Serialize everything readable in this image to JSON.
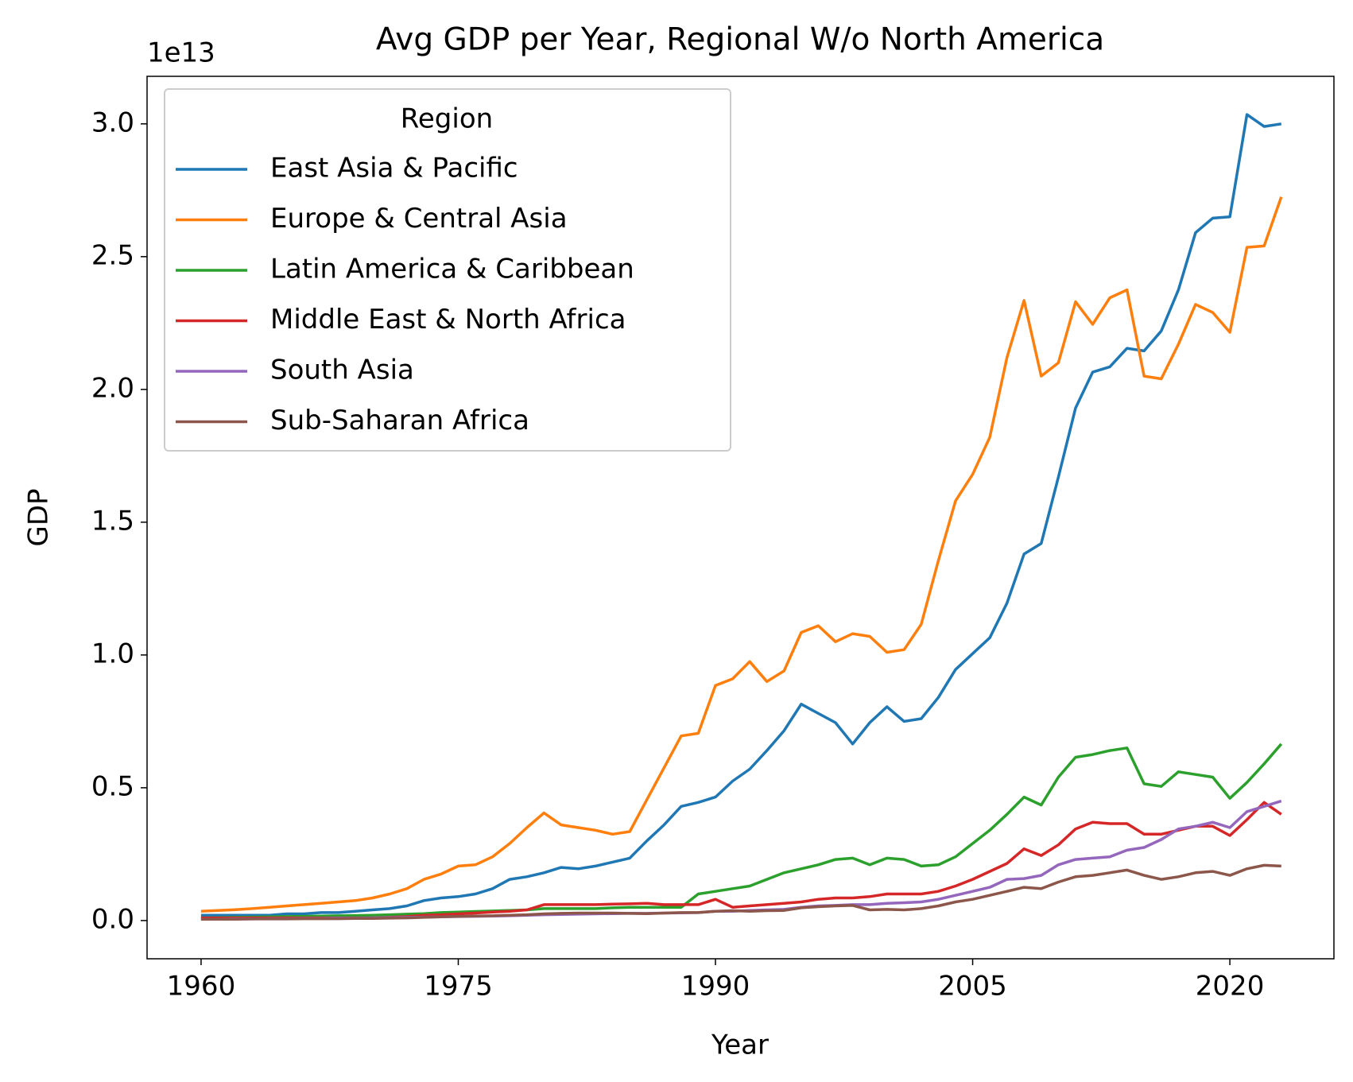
{
  "chart_data": {
    "type": "line",
    "title": "Avg GDP per Year, Regional W/o North America",
    "x_label": "Year",
    "y_label": "GDP",
    "y_offset_label": "1e13",
    "legend_title": "Region",
    "legend_position": "upper left",
    "x": [
      1960,
      1961,
      1962,
      1963,
      1964,
      1965,
      1966,
      1967,
      1968,
      1969,
      1970,
      1971,
      1972,
      1973,
      1974,
      1975,
      1976,
      1977,
      1978,
      1979,
      1980,
      1981,
      1982,
      1983,
      1984,
      1985,
      1986,
      1987,
      1988,
      1989,
      1990,
      1991,
      1992,
      1993,
      1994,
      1995,
      1996,
      1997,
      1998,
      1999,
      2000,
      2001,
      2002,
      2003,
      2004,
      2005,
      2006,
      2007,
      2008,
      2009,
      2010,
      2011,
      2012,
      2013,
      2014,
      2015,
      2016,
      2017,
      2018,
      2019,
      2020,
      2021,
      2022,
      2023
    ],
    "xlim": [
      1956.85,
      2026.07
    ],
    "xticks": [
      1960,
      1975,
      1990,
      2005,
      2020
    ],
    "ylim": [
      -0.144,
      3.179
    ],
    "yticks": [
      {
        "value": 0,
        "label": "0.0"
      },
      0.5,
      {
        "value": 1,
        "label": "1.0"
      },
      1.5,
      {
        "value": 2,
        "label": "2.0"
      },
      2.5,
      {
        "value": 3,
        "label": "3.0"
      }
    ],
    "series": [
      {
        "name": "East Asia & Pacific",
        "color": "#1f77b4",
        "values": [
          0.02,
          0.02,
          0.02,
          0.02,
          0.02,
          0.025,
          0.025,
          0.03,
          0.03,
          0.035,
          0.04,
          0.045,
          0.055,
          0.075,
          0.085,
          0.09,
          0.1,
          0.12,
          0.155,
          0.165,
          0.18,
          0.2,
          0.195,
          0.205,
          0.22,
          0.235,
          0.3,
          0.36,
          0.43,
          0.445,
          0.465,
          0.525,
          0.57,
          0.64,
          0.715,
          0.815,
          0.78,
          0.745,
          0.665,
          0.745,
          0.805,
          0.75,
          0.76,
          0.84,
          0.945,
          1.005,
          1.065,
          1.195,
          1.38,
          1.42,
          1.67,
          1.93,
          2.065,
          2.085,
          2.155,
          2.145,
          2.22,
          2.375,
          2.59,
          2.645,
          2.65,
          3.035,
          2.99,
          3.0
        ]
      },
      {
        "name": "Europe & Central Asia",
        "color": "#ff7f0e",
        "values": [
          0.035,
          0.038,
          0.041,
          0.045,
          0.05,
          0.055,
          0.06,
          0.065,
          0.07,
          0.075,
          0.085,
          0.1,
          0.12,
          0.155,
          0.175,
          0.205,
          0.21,
          0.24,
          0.29,
          0.35,
          0.405,
          0.36,
          0.35,
          0.34,
          0.325,
          0.335,
          0.455,
          0.575,
          0.695,
          0.705,
          0.885,
          0.91,
          0.975,
          0.9,
          0.94,
          1.085,
          1.11,
          1.05,
          1.08,
          1.07,
          1.01,
          1.02,
          1.115,
          1.355,
          1.58,
          1.68,
          1.82,
          2.12,
          2.335,
          2.05,
          2.1,
          2.33,
          2.245,
          2.345,
          2.375,
          2.05,
          2.04,
          2.17,
          2.32,
          2.29,
          2.215,
          2.535,
          2.54,
          2.725
        ]
      },
      {
        "name": "Latin America & Caribbean",
        "color": "#2ca02c",
        "values": [
          0.01,
          0.011,
          0.012,
          0.013,
          0.014,
          0.015,
          0.016,
          0.017,
          0.018,
          0.019,
          0.02,
          0.022,
          0.024,
          0.026,
          0.03,
          0.032,
          0.034,
          0.036,
          0.038,
          0.04,
          0.045,
          0.045,
          0.045,
          0.045,
          0.048,
          0.05,
          0.05,
          0.05,
          0.05,
          0.1,
          0.11,
          0.12,
          0.13,
          0.155,
          0.18,
          0.195,
          0.21,
          0.23,
          0.235,
          0.21,
          0.235,
          0.23,
          0.205,
          0.21,
          0.24,
          0.29,
          0.34,
          0.4,
          0.465,
          0.435,
          0.54,
          0.615,
          0.625,
          0.64,
          0.65,
          0.515,
          0.505,
          0.56,
          0.55,
          0.54,
          0.46,
          0.52,
          0.59,
          0.665
        ]
      },
      {
        "name": "Middle East & North Africa",
        "color": "#d62728",
        "values": [
          0.01,
          0.01,
          0.01,
          0.01,
          0.01,
          0.01,
          0.01,
          0.01,
          0.01,
          0.01,
          0.01,
          0.012,
          0.015,
          0.02,
          0.022,
          0.025,
          0.028,
          0.032,
          0.035,
          0.04,
          0.06,
          0.06,
          0.06,
          0.06,
          0.062,
          0.063,
          0.065,
          0.06,
          0.06,
          0.06,
          0.08,
          0.05,
          0.055,
          0.06,
          0.065,
          0.07,
          0.08,
          0.085,
          0.085,
          0.09,
          0.1,
          0.1,
          0.1,
          0.11,
          0.13,
          0.155,
          0.185,
          0.215,
          0.27,
          0.245,
          0.285,
          0.345,
          0.37,
          0.365,
          0.365,
          0.325,
          0.325,
          0.34,
          0.355,
          0.355,
          0.32,
          0.38,
          0.445,
          0.4
        ]
      },
      {
        "name": "South Asia",
        "color": "#9467bd",
        "values": [
          0.005,
          0.005,
          0.006,
          0.006,
          0.007,
          0.007,
          0.008,
          0.008,
          0.009,
          0.009,
          0.01,
          0.011,
          0.012,
          0.013,
          0.014,
          0.015,
          0.016,
          0.017,
          0.018,
          0.02,
          0.022,
          0.023,
          0.024,
          0.025,
          0.026,
          0.027,
          0.027,
          0.028,
          0.029,
          0.03,
          0.035,
          0.035,
          0.038,
          0.04,
          0.042,
          0.05,
          0.055,
          0.057,
          0.06,
          0.06,
          0.065,
          0.067,
          0.07,
          0.08,
          0.095,
          0.11,
          0.125,
          0.155,
          0.158,
          0.17,
          0.21,
          0.23,
          0.235,
          0.24,
          0.265,
          0.275,
          0.305,
          0.345,
          0.355,
          0.37,
          0.35,
          0.41,
          0.43,
          0.45
        ]
      },
      {
        "name": "Sub-Saharan Africa",
        "color": "#8c564b",
        "values": [
          0.005,
          0.005,
          0.005,
          0.006,
          0.006,
          0.006,
          0.007,
          0.007,
          0.007,
          0.008,
          0.008,
          0.009,
          0.01,
          0.012,
          0.014,
          0.016,
          0.017,
          0.018,
          0.02,
          0.022,
          0.025,
          0.027,
          0.028,
          0.028,
          0.028,
          0.027,
          0.026,
          0.028,
          0.03,
          0.03,
          0.035,
          0.037,
          0.035,
          0.037,
          0.038,
          0.048,
          0.052,
          0.055,
          0.057,
          0.04,
          0.042,
          0.04,
          0.045,
          0.055,
          0.07,
          0.08,
          0.095,
          0.11,
          0.125,
          0.12,
          0.145,
          0.165,
          0.17,
          0.18,
          0.19,
          0.17,
          0.155,
          0.165,
          0.18,
          0.185,
          0.17,
          0.195,
          0.208,
          0.205
        ]
      }
    ]
  }
}
